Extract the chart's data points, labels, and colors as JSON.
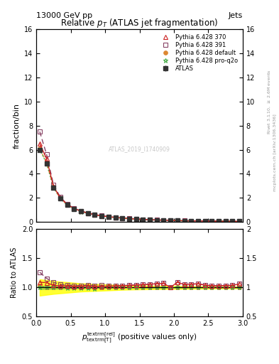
{
  "title": "Relative $p_{T}$ (ATLAS jet fragmentation)",
  "header_left": "13000 GeV pp",
  "header_right": "Jets",
  "ylabel_main": "fraction/bin",
  "ylabel_ratio": "Ratio to ATLAS",
  "watermark": "ATLAS_2019_I1740909",
  "x_data": [
    0.05,
    0.15,
    0.25,
    0.35,
    0.45,
    0.55,
    0.65,
    0.75,
    0.85,
    0.95,
    1.05,
    1.15,
    1.25,
    1.35,
    1.45,
    1.55,
    1.65,
    1.75,
    1.85,
    1.95,
    2.05,
    2.15,
    2.25,
    2.35,
    2.45,
    2.55,
    2.65,
    2.75,
    2.85,
    2.95
  ],
  "atlas_y": [
    5.95,
    4.85,
    2.85,
    1.95,
    1.42,
    1.1,
    0.88,
    0.72,
    0.6,
    0.5,
    0.43,
    0.37,
    0.32,
    0.28,
    0.24,
    0.21,
    0.18,
    0.16,
    0.14,
    0.13,
    0.11,
    0.1,
    0.09,
    0.08,
    0.075,
    0.07,
    0.065,
    0.06,
    0.055,
    0.05
  ],
  "atlas_err_lo": [
    0.05,
    0.04,
    0.03,
    0.02,
    0.015,
    0.012,
    0.01,
    0.008,
    0.007,
    0.006,
    0.005,
    0.005,
    0.004,
    0.004,
    0.003,
    0.003,
    0.003,
    0.002,
    0.002,
    0.002,
    0.002,
    0.002,
    0.001,
    0.001,
    0.001,
    0.001,
    0.001,
    0.001,
    0.001,
    0.001
  ],
  "atlas_err_hi": [
    0.05,
    0.04,
    0.03,
    0.02,
    0.015,
    0.012,
    0.01,
    0.008,
    0.007,
    0.006,
    0.005,
    0.005,
    0.004,
    0.004,
    0.003,
    0.003,
    0.003,
    0.002,
    0.002,
    0.002,
    0.002,
    0.002,
    0.001,
    0.001,
    0.001,
    0.001,
    0.001,
    0.001,
    0.001,
    0.001
  ],
  "py370_y": [
    6.5,
    5.25,
    2.95,
    2.0,
    1.46,
    1.12,
    0.9,
    0.74,
    0.61,
    0.51,
    0.44,
    0.38,
    0.33,
    0.29,
    0.25,
    0.22,
    0.19,
    0.17,
    0.15,
    0.13,
    0.12,
    0.105,
    0.095,
    0.085,
    0.078,
    0.072,
    0.067,
    0.062,
    0.057,
    0.053
  ],
  "py391_y": [
    7.5,
    5.6,
    3.1,
    2.05,
    1.48,
    1.13,
    0.91,
    0.75,
    0.62,
    0.52,
    0.44,
    0.38,
    0.33,
    0.29,
    0.25,
    0.22,
    0.19,
    0.17,
    0.15,
    0.13,
    0.12,
    0.105,
    0.095,
    0.085,
    0.078,
    0.072,
    0.067,
    0.062,
    0.057,
    0.053
  ],
  "pydef_y": [
    6.1,
    4.9,
    2.88,
    1.96,
    1.42,
    1.1,
    0.88,
    0.72,
    0.6,
    0.5,
    0.43,
    0.37,
    0.32,
    0.28,
    0.24,
    0.21,
    0.18,
    0.16,
    0.14,
    0.13,
    0.11,
    0.1,
    0.09,
    0.08,
    0.075,
    0.07,
    0.065,
    0.06,
    0.055,
    0.05
  ],
  "pyq2o_y": [
    6.0,
    4.88,
    2.86,
    1.95,
    1.41,
    1.09,
    0.87,
    0.71,
    0.59,
    0.5,
    0.43,
    0.37,
    0.32,
    0.28,
    0.24,
    0.21,
    0.18,
    0.16,
    0.14,
    0.13,
    0.11,
    0.1,
    0.09,
    0.08,
    0.075,
    0.07,
    0.065,
    0.06,
    0.055,
    0.05
  ],
  "ratio_py370": [
    1.09,
    1.082,
    1.035,
    1.026,
    1.028,
    1.018,
    1.022,
    1.028,
    1.017,
    1.02,
    1.023,
    1.027,
    1.031,
    1.036,
    1.042,
    1.048,
    1.056,
    1.063,
    1.071,
    1.0,
    1.09,
    1.05,
    1.056,
    1.063,
    1.04,
    1.029,
    1.031,
    1.033,
    1.036,
    1.06
  ],
  "ratio_py391": [
    1.26,
    1.155,
    1.088,
    1.051,
    1.042,
    1.027,
    1.034,
    1.042,
    1.033,
    1.04,
    1.023,
    1.027,
    1.031,
    1.036,
    1.042,
    1.048,
    1.056,
    1.063,
    1.071,
    1.0,
    1.09,
    1.05,
    1.056,
    1.063,
    1.04,
    1.029,
    1.031,
    1.033,
    1.036,
    1.06
  ],
  "ratio_pydef": [
    1.025,
    1.01,
    1.01,
    1.005,
    1.0,
    1.0,
    1.0,
    1.0,
    1.0,
    1.0,
    1.0,
    1.0,
    1.0,
    1.0,
    1.0,
    1.0,
    1.0,
    1.0,
    1.0,
    1.0,
    1.0,
    1.0,
    1.0,
    1.0,
    1.0,
    1.0,
    1.0,
    1.0,
    1.0,
    1.0
  ],
  "ratio_pyq2o": [
    1.008,
    1.006,
    1.004,
    1.0,
    0.993,
    0.991,
    0.989,
    0.986,
    0.983,
    1.0,
    1.0,
    1.0,
    1.0,
    1.0,
    1.0,
    1.0,
    1.0,
    1.0,
    1.0,
    1.0,
    1.0,
    1.0,
    1.0,
    1.0,
    1.0,
    1.0,
    1.0,
    1.0,
    1.0,
    1.0
  ],
  "green_band_lo": [
    0.97,
    0.975,
    0.978,
    0.98,
    0.983,
    0.985,
    0.987,
    0.988,
    0.989,
    0.99,
    0.992,
    0.993,
    0.994,
    0.994,
    0.995,
    0.995,
    0.996,
    0.996,
    0.997,
    0.997,
    0.997,
    0.997,
    0.998,
    0.998,
    0.998,
    0.998,
    0.998,
    0.999,
    0.999,
    0.999
  ],
  "green_band_hi": [
    1.03,
    1.025,
    1.022,
    1.02,
    1.017,
    1.015,
    1.013,
    1.012,
    1.011,
    1.01,
    1.008,
    1.007,
    1.006,
    1.006,
    1.005,
    1.005,
    1.004,
    1.004,
    1.003,
    1.003,
    1.003,
    1.003,
    1.002,
    1.002,
    1.002,
    1.002,
    1.002,
    1.001,
    1.001,
    1.001
  ],
  "yellow_band_lo": [
    0.86,
    0.875,
    0.89,
    0.9,
    0.91,
    0.92,
    0.93,
    0.935,
    0.94,
    0.945,
    0.95,
    0.955,
    0.96,
    0.963,
    0.966,
    0.968,
    0.97,
    0.972,
    0.974,
    0.975,
    0.976,
    0.977,
    0.978,
    0.979,
    0.98,
    0.981,
    0.982,
    0.983,
    0.984,
    0.985
  ],
  "yellow_band_hi": [
    1.14,
    1.125,
    1.11,
    1.1,
    1.09,
    1.08,
    1.07,
    1.065,
    1.06,
    1.055,
    1.05,
    1.045,
    1.04,
    1.037,
    1.034,
    1.032,
    1.03,
    1.028,
    1.026,
    1.025,
    1.024,
    1.023,
    1.022,
    1.021,
    1.02,
    1.019,
    1.018,
    1.017,
    1.016,
    1.015
  ],
  "color_atlas": "#333333",
  "color_370": "#cc2222",
  "color_391": "#884466",
  "color_default": "#dd8833",
  "color_q2o": "#44aa44",
  "xlim": [
    0,
    3
  ],
  "ylim_main": [
    0,
    16
  ],
  "ylim_ratio": [
    0.5,
    2.0
  ]
}
